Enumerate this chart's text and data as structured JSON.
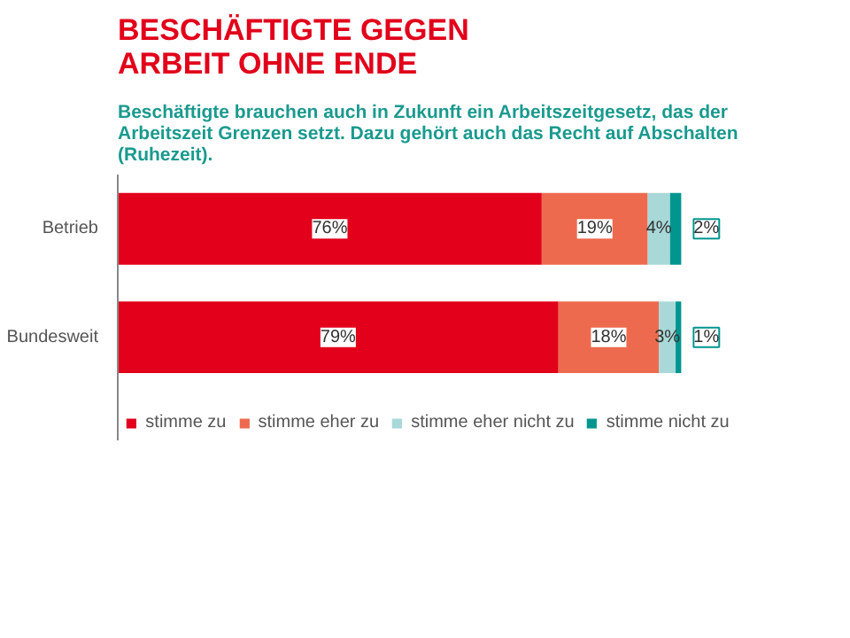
{
  "chart_data": {
    "type": "bar",
    "orientation": "horizontal",
    "stacked": true,
    "title": "BESCHÄFTIGTE GEGEN ARBEIT OHNE ENDE",
    "subtitle": "Beschäftigte brauchen auch in Zukunft ein Arbeitszeitgesetz, das der Arbeitszeit Grenzen setzt. Dazu gehört auch das Recht auf Abschalten (Ruhezeit).",
    "categories": [
      "Betrieb",
      "Bundesweit"
    ],
    "series": [
      {
        "name": "stimme zu",
        "color": "#e2001a",
        "values": [
          76,
          79
        ],
        "value_labels": [
          "76%",
          "79%"
        ]
      },
      {
        "name": "stimme eher zu",
        "color": "#ee6a4e",
        "values": [
          19,
          18
        ],
        "value_labels": [
          "19%",
          "18%"
        ]
      },
      {
        "name": "stimme eher nicht zu",
        "color": "#a8d8d8",
        "values": [
          4,
          3
        ],
        "value_labels": [
          "4%",
          "3%"
        ]
      },
      {
        "name": "stimme nicht zu",
        "color": "#00968f",
        "values": [
          2,
          1
        ],
        "value_labels": [
          "2%",
          "1%"
        ]
      }
    ],
    "tick_labels": "y",
    "legend": "bottom"
  }
}
